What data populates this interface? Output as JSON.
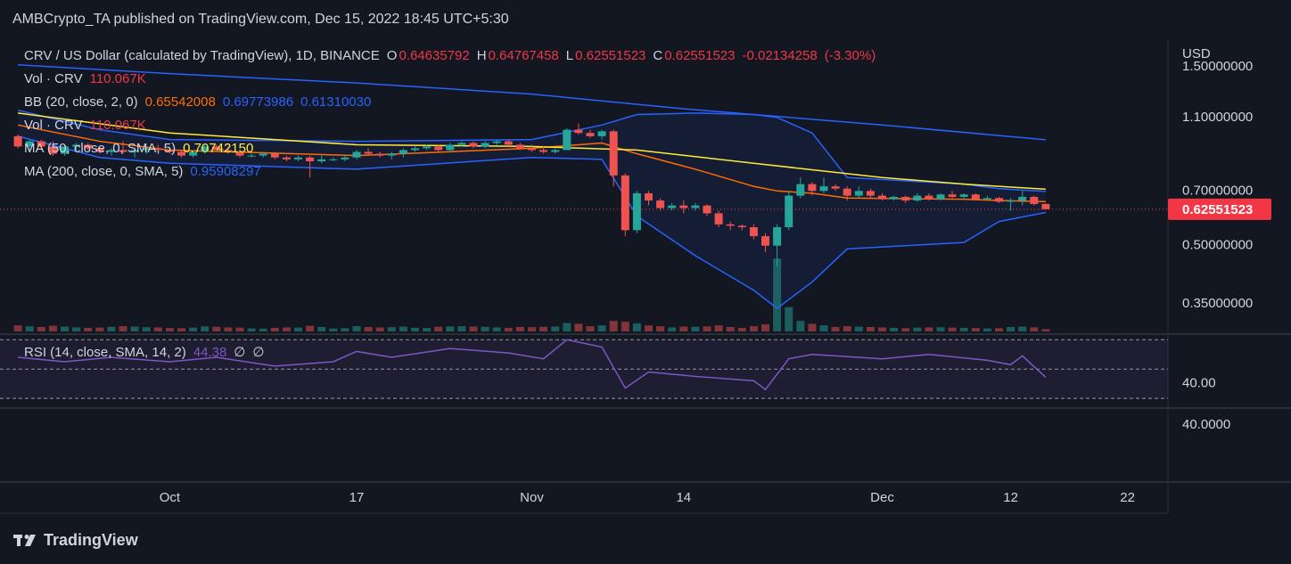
{
  "header": {
    "publisher": "AMBCrypto_TA published on TradingView.com, Dec 15, 2022 18:45 UTC+5:30"
  },
  "chart_data": {
    "type": "candlestick",
    "currency": "USD",
    "log_scale": true,
    "xlim": [
      "2022-09-17",
      "2022-12-26"
    ],
    "xticks": [
      {
        "value": "2022-10-01",
        "label": "Oct"
      },
      {
        "value": "2022-10-17",
        "label": "17"
      },
      {
        "value": "2022-11-01",
        "label": "Nov"
      },
      {
        "value": "2022-11-14",
        "label": "14"
      },
      {
        "value": "2022-12-01",
        "label": "Dec"
      },
      {
        "value": "2022-12-12",
        "label": "12"
      },
      {
        "value": "2022-12-22",
        "label": "22"
      }
    ],
    "ylim": [
      0.295,
      1.77
    ],
    "yticks": [
      {
        "value": 1.5,
        "label": "1.50000000"
      },
      {
        "value": 1.1,
        "label": "1.10000000"
      },
      {
        "value": 0.7,
        "label": "0.70000000"
      },
      {
        "value": 0.5,
        "label": "0.50000000"
      },
      {
        "value": 0.35,
        "label": "0.35000000"
      }
    ],
    "up_color": "#26a69a",
    "down_color": "#ef5350",
    "x": [
      "2022-09-18",
      "2022-09-19",
      "2022-09-20",
      "2022-09-21",
      "2022-09-22",
      "2022-09-23",
      "2022-09-24",
      "2022-09-25",
      "2022-09-26",
      "2022-09-27",
      "2022-09-28",
      "2022-09-29",
      "2022-09-30",
      "2022-10-01",
      "2022-10-02",
      "2022-10-03",
      "2022-10-04",
      "2022-10-05",
      "2022-10-06",
      "2022-10-07",
      "2022-10-08",
      "2022-10-09",
      "2022-10-10",
      "2022-10-11",
      "2022-10-12",
      "2022-10-13",
      "2022-10-14",
      "2022-10-15",
      "2022-10-16",
      "2022-10-17",
      "2022-10-18",
      "2022-10-19",
      "2022-10-20",
      "2022-10-21",
      "2022-10-22",
      "2022-10-23",
      "2022-10-24",
      "2022-10-25",
      "2022-10-26",
      "2022-10-27",
      "2022-10-28",
      "2022-10-29",
      "2022-10-30",
      "2022-10-31",
      "2022-11-01",
      "2022-11-02",
      "2022-11-03",
      "2022-11-04",
      "2022-11-05",
      "2022-11-06",
      "2022-11-07",
      "2022-11-08",
      "2022-11-09",
      "2022-11-10",
      "2022-11-11",
      "2022-11-12",
      "2022-11-13",
      "2022-11-14",
      "2022-11-15",
      "2022-11-16",
      "2022-11-17",
      "2022-11-18",
      "2022-11-19",
      "2022-11-20",
      "2022-11-21",
      "2022-11-22",
      "2022-11-23",
      "2022-11-24",
      "2022-11-25",
      "2022-11-26",
      "2022-11-27",
      "2022-11-28",
      "2022-11-29",
      "2022-11-30",
      "2022-12-01",
      "2022-12-02",
      "2022-12-03",
      "2022-12-04",
      "2022-12-05",
      "2022-12-06",
      "2022-12-07",
      "2022-12-08",
      "2022-12-09",
      "2022-12-10",
      "2022-12-11",
      "2022-12-12",
      "2022-12-13",
      "2022-12-14",
      "2022-12-15"
    ],
    "ohlc": [
      [
        0.98,
        0.99,
        0.91,
        0.92
      ],
      [
        0.92,
        0.96,
        0.9,
        0.95
      ],
      [
        0.95,
        0.96,
        0.91,
        0.92
      ],
      [
        0.92,
        0.95,
        0.87,
        0.88
      ],
      [
        0.88,
        0.93,
        0.87,
        0.92
      ],
      [
        0.92,
        0.94,
        0.89,
        0.93
      ],
      [
        0.93,
        0.94,
        0.9,
        0.91
      ],
      [
        0.91,
        0.92,
        0.88,
        0.89
      ],
      [
        0.89,
        0.91,
        0.87,
        0.9
      ],
      [
        0.9,
        0.95,
        0.88,
        0.89
      ],
      [
        0.89,
        0.91,
        0.86,
        0.9
      ],
      [
        0.9,
        0.92,
        0.88,
        0.91
      ],
      [
        0.91,
        0.93,
        0.89,
        0.9
      ],
      [
        0.9,
        0.91,
        0.88,
        0.89
      ],
      [
        0.89,
        0.9,
        0.86,
        0.87
      ],
      [
        0.87,
        0.9,
        0.86,
        0.89
      ],
      [
        0.89,
        0.93,
        0.88,
        0.92
      ],
      [
        0.92,
        0.93,
        0.89,
        0.9
      ],
      [
        0.9,
        0.92,
        0.88,
        0.89
      ],
      [
        0.89,
        0.9,
        0.86,
        0.87
      ],
      [
        0.87,
        0.88,
        0.86,
        0.87
      ],
      [
        0.87,
        0.89,
        0.86,
        0.88
      ],
      [
        0.88,
        0.89,
        0.85,
        0.86
      ],
      [
        0.86,
        0.87,
        0.84,
        0.85
      ],
      [
        0.85,
        0.87,
        0.84,
        0.86
      ],
      [
        0.86,
        0.87,
        0.76,
        0.84
      ],
      [
        0.84,
        0.87,
        0.83,
        0.85
      ],
      [
        0.85,
        0.86,
        0.84,
        0.85
      ],
      [
        0.85,
        0.87,
        0.84,
        0.86
      ],
      [
        0.86,
        0.9,
        0.85,
        0.89
      ],
      [
        0.89,
        0.91,
        0.87,
        0.88
      ],
      [
        0.88,
        0.89,
        0.86,
        0.87
      ],
      [
        0.87,
        0.89,
        0.85,
        0.88
      ],
      [
        0.88,
        0.91,
        0.86,
        0.9
      ],
      [
        0.9,
        0.92,
        0.89,
        0.91
      ],
      [
        0.91,
        0.93,
        0.9,
        0.92
      ],
      [
        0.92,
        0.93,
        0.89,
        0.9
      ],
      [
        0.9,
        0.94,
        0.89,
        0.93
      ],
      [
        0.93,
        0.95,
        0.92,
        0.94
      ],
      [
        0.94,
        0.95,
        0.91,
        0.92
      ],
      [
        0.92,
        0.95,
        0.91,
        0.94
      ],
      [
        0.94,
        0.96,
        0.93,
        0.95
      ],
      [
        0.95,
        0.96,
        0.92,
        0.93
      ],
      [
        0.93,
        0.94,
        0.9,
        0.91
      ],
      [
        0.91,
        0.93,
        0.89,
        0.9
      ],
      [
        0.9,
        0.92,
        0.88,
        0.89
      ],
      [
        0.89,
        0.91,
        0.88,
        0.9
      ],
      [
        0.9,
        1.03,
        0.9,
        1.02
      ],
      [
        1.02,
        1.06,
        0.99,
        1.0
      ],
      [
        1.0,
        1.02,
        0.97,
        0.98
      ],
      [
        0.98,
        1.02,
        0.96,
        1.01
      ],
      [
        1.01,
        1.02,
        0.72,
        0.77
      ],
      [
        0.77,
        0.78,
        0.53,
        0.55
      ],
      [
        0.55,
        0.7,
        0.54,
        0.69
      ],
      [
        0.69,
        0.7,
        0.64,
        0.66
      ],
      [
        0.66,
        0.67,
        0.62,
        0.63
      ],
      [
        0.63,
        0.65,
        0.62,
        0.64
      ],
      [
        0.64,
        0.66,
        0.61,
        0.63
      ],
      [
        0.63,
        0.65,
        0.62,
        0.64
      ],
      [
        0.64,
        0.645,
        0.6,
        0.61
      ],
      [
        0.61,
        0.62,
        0.56,
        0.57
      ],
      [
        0.57,
        0.58,
        0.55,
        0.565
      ],
      [
        0.565,
        0.57,
        0.55,
        0.56
      ],
      [
        0.56,
        0.57,
        0.52,
        0.53
      ],
      [
        0.53,
        0.54,
        0.48,
        0.5
      ],
      [
        0.5,
        0.57,
        0.44,
        0.56
      ],
      [
        0.56,
        0.7,
        0.55,
        0.68
      ],
      [
        0.68,
        0.76,
        0.67,
        0.73
      ],
      [
        0.73,
        0.74,
        0.68,
        0.7
      ],
      [
        0.7,
        0.76,
        0.69,
        0.72
      ],
      [
        0.72,
        0.73,
        0.7,
        0.71
      ],
      [
        0.71,
        0.72,
        0.66,
        0.68
      ],
      [
        0.68,
        0.72,
        0.67,
        0.7
      ],
      [
        0.7,
        0.71,
        0.67,
        0.68
      ],
      [
        0.68,
        0.69,
        0.66,
        0.665
      ],
      [
        0.665,
        0.68,
        0.66,
        0.675
      ],
      [
        0.675,
        0.68,
        0.65,
        0.66
      ],
      [
        0.66,
        0.69,
        0.655,
        0.68
      ],
      [
        0.68,
        0.69,
        0.66,
        0.665
      ],
      [
        0.665,
        0.69,
        0.66,
        0.685
      ],
      [
        0.685,
        0.7,
        0.67,
        0.675
      ],
      [
        0.675,
        0.69,
        0.665,
        0.685
      ],
      [
        0.685,
        0.69,
        0.66,
        0.665
      ],
      [
        0.665,
        0.68,
        0.66,
        0.67
      ],
      [
        0.67,
        0.675,
        0.65,
        0.655
      ],
      [
        0.655,
        0.67,
        0.62,
        0.66
      ],
      [
        0.66,
        0.7,
        0.64,
        0.675
      ],
      [
        0.675,
        0.68,
        0.64,
        0.646
      ],
      [
        0.64635792,
        0.64767458,
        0.62551523,
        0.62551523
      ]
    ],
    "volume": [
      300000,
      250000,
      220000,
      280000,
      240000,
      200000,
      180000,
      190000,
      230000,
      260000,
      240000,
      210000,
      200000,
      170000,
      160000,
      190000,
      250000,
      230000,
      200000,
      190000,
      150000,
      140000,
      180000,
      200000,
      190000,
      280000,
      220000,
      150000,
      160000,
      260000,
      220000,
      200000,
      210000,
      240000,
      180000,
      170000,
      230000,
      250000,
      260000,
      240000,
      230000,
      200000,
      180000,
      220000,
      210000,
      230000,
      240000,
      420000,
      380000,
      260000,
      300000,
      520000,
      480000,
      400000,
      300000,
      260000,
      200000,
      240000,
      230000,
      250000,
      300000,
      220000,
      180000,
      260000,
      350000,
      3600000,
      1200000,
      520000,
      380000,
      300000,
      220000,
      260000,
      240000,
      220000,
      200000,
      180000,
      160000,
      190000,
      200000,
      210000,
      190000,
      180000,
      170000,
      150000,
      160000,
      220000,
      240000,
      200000,
      110067
    ],
    "volume_ylim": [
      0,
      4400000
    ],
    "overlays": [
      {
        "color": "#2962ff",
        "x": [
          "2022-09-18",
          "2022-09-25",
          "2022-10-01",
          "2022-10-17",
          "2022-11-01",
          "2022-11-07",
          "2022-11-10",
          "2022-11-15",
          "2022-11-20",
          "2022-11-22",
          "2022-11-25",
          "2022-11-28",
          "2022-12-08",
          "2022-12-11",
          "2022-12-15"
        ],
        "values": [
          1.15,
          1.02,
          0.96,
          0.95,
          0.96,
          1.05,
          1.12,
          1.13,
          1.12,
          1.1,
          1.0,
          0.76,
          0.73,
          0.71,
          0.69773986
        ]
      },
      {
        "color": "#ff6d00",
        "x": [
          "2022-09-18",
          "2022-09-25",
          "2022-10-01",
          "2022-10-17",
          "2022-11-01",
          "2022-11-07",
          "2022-11-10",
          "2022-11-15",
          "2022-11-20",
          "2022-11-22",
          "2022-11-25",
          "2022-11-28",
          "2022-12-08",
          "2022-12-11",
          "2022-12-15"
        ],
        "values": [
          1.05,
          0.95,
          0.9,
          0.87,
          0.91,
          0.94,
          0.88,
          0.8,
          0.72,
          0.7,
          0.69,
          0.67,
          0.665,
          0.66,
          0.65542008
        ]
      },
      {
        "color": "#2962ff",
        "x": [
          "2022-09-18",
          "2022-09-25",
          "2022-10-01",
          "2022-10-17",
          "2022-11-01",
          "2022-11-07",
          "2022-11-10",
          "2022-11-15",
          "2022-11-20",
          "2022-11-22",
          "2022-11-25",
          "2022-11-28",
          "2022-12-08",
          "2022-12-11",
          "2022-12-15"
        ],
        "values": [
          0.98,
          0.86,
          0.83,
          0.8,
          0.86,
          0.85,
          0.6,
          0.47,
          0.38,
          0.34,
          0.4,
          0.49,
          0.51,
          0.58,
          0.6131003
        ]
      },
      {
        "color": "#ffeb3b",
        "x": [
          "2022-09-18",
          "2022-10-01",
          "2022-10-17",
          "2022-11-01",
          "2022-11-10",
          "2022-11-20",
          "2022-12-01",
          "2022-12-08",
          "2022-12-15"
        ],
        "values": [
          1.13,
          1.0,
          0.93,
          0.92,
          0.9,
          0.83,
          0.76,
          0.73,
          0.7074215
        ]
      },
      {
        "color": "#2962ff",
        "x": [
          "2022-09-18",
          "2022-10-01",
          "2022-10-17",
          "2022-11-01",
          "2022-11-14",
          "2022-12-01",
          "2022-12-15"
        ],
        "values": [
          1.52,
          1.44,
          1.36,
          1.27,
          1.16,
          1.05,
          0.95908297
        ]
      }
    ],
    "band_fill": "rgba(41,98,255,0.08)",
    "legend": [
      {
        "name": "CRV / US Dollar (calculated by TradingView), 1D, BINANCE",
        "values": [
          {
            "prefix": "O",
            "value": 0.64635792,
            "color": "#f23645"
          },
          {
            "prefix": "H",
            "value": 0.64767458,
            "color": "#f23645"
          },
          {
            "prefix": "L",
            "value": 0.62551523,
            "color": "#f23645"
          },
          {
            "prefix": "C",
            "value": 0.62551523,
            "color": "#f23645"
          },
          {
            "value": -0.02134258,
            "color": "#f23645"
          },
          {
            "value": {
              "value": -3.3,
              "label": "(-3.30%)"
            },
            "color": "#f23645"
          }
        ]
      },
      {
        "name": "Vol · CRV",
        "values": [
          {
            "value": {
              "value": 110067,
              "label": "110.067K"
            },
            "color": "#f23645"
          }
        ]
      },
      {
        "name": "BB (20, close, 2, 0)",
        "values": [
          {
            "value": 0.65542008,
            "color": "#ff6d00"
          },
          {
            "value": 0.69773986,
            "color": "#2962ff"
          },
          {
            "value": {
              "value": 0.6131003,
              "label": "0.61310030"
            },
            "color": "#2962ff"
          }
        ]
      },
      {
        "name": "Vol · CRV",
        "values": [
          {
            "value": {
              "value": 110067,
              "label": "110.067K"
            },
            "color": "#f23645"
          }
        ]
      },
      {
        "name": "MA (50, close, 0, SMA, 5)",
        "values": [
          {
            "value": {
              "value": 0.7074215,
              "label": "0.70742150"
            },
            "color": "#ffeb3b"
          }
        ]
      },
      {
        "name": "MA (200, close, 0, SMA, 5)",
        "values": [
          {
            "value": 0.95908297,
            "color": "#2962ff"
          }
        ]
      }
    ],
    "rsi": {
      "legend": "RSI (14, close, SMA, 14, 2)",
      "markers": [
        "∅",
        "∅"
      ],
      "color": "#7e57c2",
      "ylim": [
        24,
        72
      ],
      "yticks": [
        {
          "value": 40,
          "label": "40.00"
        }
      ],
      "bands": [
        70,
        50,
        30
      ],
      "x": [
        "2022-09-18",
        "2022-09-22",
        "2022-09-26",
        "2022-10-01",
        "2022-10-05",
        "2022-10-10",
        "2022-10-15",
        "2022-10-17",
        "2022-10-20",
        "2022-10-25",
        "2022-10-30",
        "2022-11-02",
        "2022-11-04",
        "2022-11-07",
        "2022-11-09",
        "2022-11-11",
        "2022-11-15",
        "2022-11-20",
        "2022-11-21",
        "2022-11-23",
        "2022-11-25",
        "2022-12-01",
        "2022-12-05",
        "2022-12-10",
        "2022-12-12",
        "2022-12-13",
        "2022-12-15"
      ],
      "values": [
        58,
        55,
        58,
        55,
        58,
        52,
        55,
        62,
        58,
        64,
        61,
        57,
        70,
        65,
        37,
        48,
        45,
        42,
        36,
        57,
        60,
        57,
        60,
        56,
        53,
        59,
        44.38
      ]
    },
    "lower_pane": {
      "axis_label": "40.0000"
    }
  },
  "footer": {
    "brand": "TradingView"
  }
}
